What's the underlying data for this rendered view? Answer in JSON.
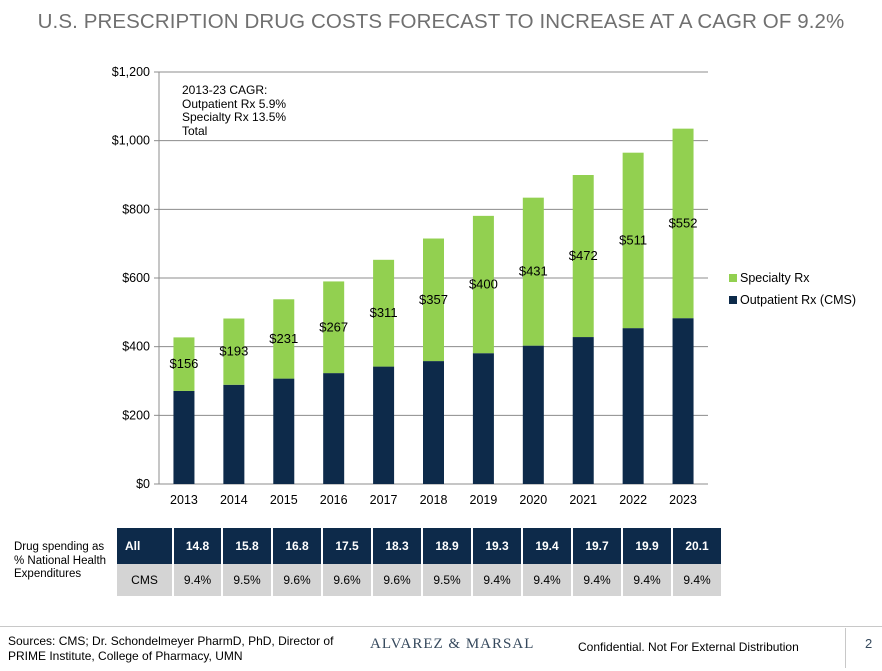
{
  "title": "U.S. PRESCRIPTION DRUG COSTS FORECAST TO INCREASE AT A CAGR OF 9.2%",
  "annotation": {
    "line1": "2013-23 CAGR:",
    "line2": "Outpatient Rx 5.9%",
    "line3": "Specialty Rx 13.5%",
    "line4": "Total"
  },
  "chart_data": {
    "type": "bar",
    "stacked": true,
    "categories": [
      "2013",
      "2014",
      "2015",
      "2016",
      "2017",
      "2018",
      "2019",
      "2020",
      "2021",
      "2022",
      "2023"
    ],
    "series": [
      {
        "name": "Outpatient Rx (CMS)",
        "color": "#0d2a4a",
        "values": [
          271,
          289,
          307,
          323,
          342,
          358,
          381,
          403,
          428,
          454,
          483
        ]
      },
      {
        "name": "Specialty Rx",
        "color": "#92d050",
        "values": [
          156,
          193,
          231,
          267,
          311,
          357,
          400,
          431,
          472,
          511,
          552
        ]
      }
    ],
    "data_labels": [
      "$156",
      "$193",
      "$231",
      "$267",
      "$311",
      "$357",
      "$400",
      "$431",
      "$472",
      "$511",
      "$552"
    ],
    "y_ticks": [
      "$0",
      "$200",
      "$400",
      "$600",
      "$800",
      "$1,000",
      "$1,200"
    ],
    "ylim": [
      0,
      1200
    ],
    "grid": true,
    "legend_position": "right"
  },
  "table": {
    "row_label": "Drug spending as % National Health Expenditures",
    "all_label": "All",
    "all_values": [
      "14.8",
      "15.8",
      "16.8",
      "17.5",
      "18.3",
      "18.9",
      "19.3",
      "19.4",
      "19.7",
      "19.9",
      "20.1"
    ],
    "cms_label": "CMS",
    "cms_values": [
      "9.4%",
      "9.5%",
      "9.6%",
      "9.6%",
      "9.6%",
      "9.5%",
      "9.4%",
      "9.4%",
      "9.4%",
      "9.4%",
      "9.4%"
    ]
  },
  "footer": {
    "sources": "Sources: CMS; Dr. Schondelmeyer PharmD, PhD, Director of PRIME Institute, College of Pharmacy, UMN",
    "logo": "ALVAREZ & MARSAL",
    "confidential": "Confidential. Not For External Distribution",
    "page": "2"
  }
}
